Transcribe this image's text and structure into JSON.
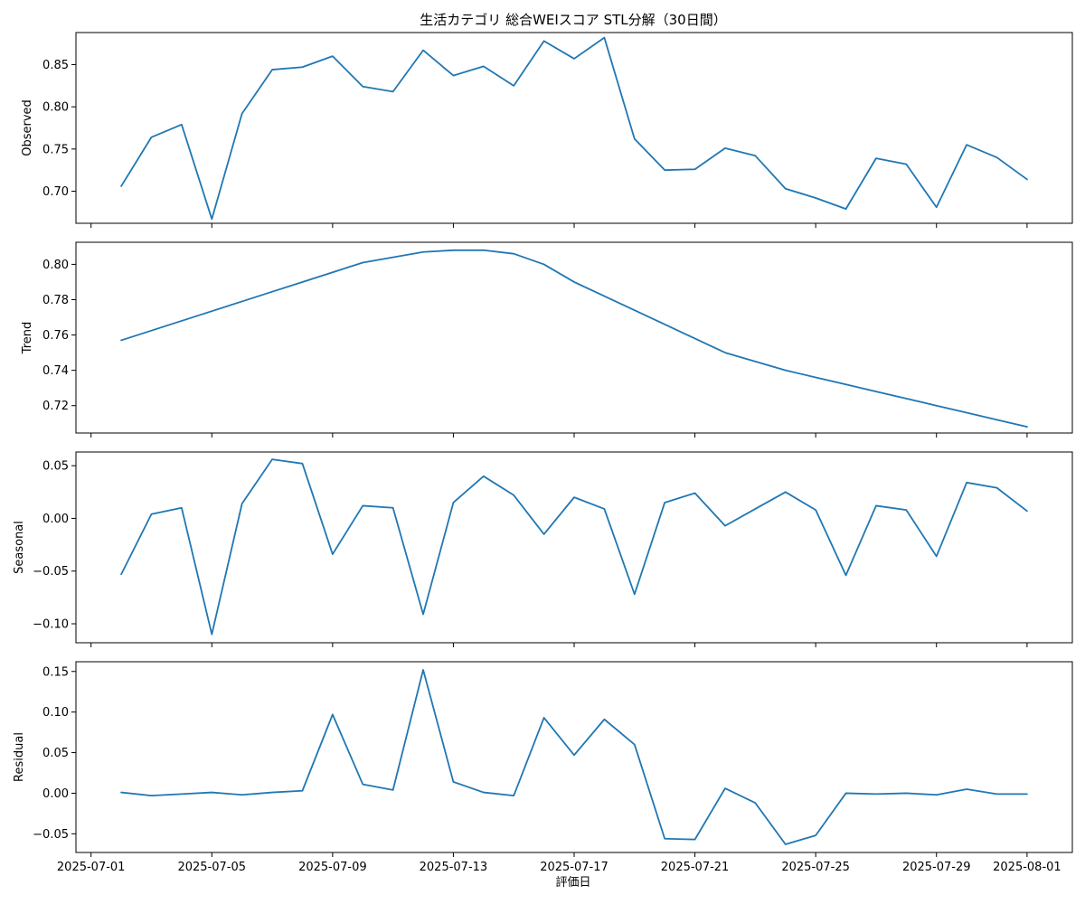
{
  "chart_data": {
    "type": "line",
    "title": "生活カテゴリ 総合WEIスコア STL分解（30日間）",
    "xlabel": "評価日",
    "x_start": "2025-07-02",
    "x_end": "2025-08-01",
    "xlim": [
      "2025-07-00T12",
      "2025-08-02T12"
    ],
    "x_ticks": [
      "2025-07-01",
      "2025-07-05",
      "2025-07-09",
      "2025-07-13",
      "2025-07-17",
      "2025-07-21",
      "2025-07-25",
      "2025-07-29",
      "2025-08-01"
    ],
    "line_color": "#1f77b4",
    "grid": false,
    "panels": [
      {
        "ylabel": "Observed",
        "ylim": [
          0.662,
          0.888
        ],
        "yticks": [
          "0.70",
          "0.75",
          "0.80",
          "0.85"
        ],
        "values": [
          0.706,
          0.764,
          0.779,
          0.667,
          0.792,
          0.844,
          0.847,
          0.86,
          0.824,
          0.818,
          0.867,
          0.837,
          0.848,
          0.825,
          0.878,
          0.857,
          0.882,
          0.762,
          0.725,
          0.726,
          0.751,
          0.742,
          0.703,
          0.692,
          0.679,
          0.739,
          0.732,
          0.681,
          0.755,
          0.74,
          0.714
        ]
      },
      {
        "ylabel": "Trend",
        "ylim": [
          0.7045,
          0.8125
        ],
        "yticks": [
          "0.72",
          "0.74",
          "0.76",
          "0.78",
          "0.80"
        ],
        "values": [
          0.757,
          0.7625,
          0.768,
          0.7735,
          0.779,
          0.7845,
          0.79,
          0.7955,
          0.801,
          0.804,
          0.807,
          0.808,
          0.808,
          0.806,
          0.8,
          0.79,
          0.782,
          0.774,
          0.766,
          0.758,
          0.75,
          0.745,
          0.74,
          0.736,
          0.732,
          0.728,
          0.724,
          0.72,
          0.716,
          0.712,
          0.708
        ]
      },
      {
        "ylabel": "Seasonal",
        "ylim": [
          -0.118,
          0.063
        ],
        "yticks": [
          "−0.10",
          "−0.05",
          "0.00",
          "0.05"
        ],
        "values": [
          -0.053,
          0.004,
          0.01,
          -0.11,
          0.014,
          0.056,
          0.052,
          -0.034,
          0.012,
          0.01,
          -0.091,
          0.015,
          0.04,
          0.022,
          -0.015,
          0.02,
          0.009,
          -0.072,
          0.015,
          0.024,
          -0.007,
          0.009,
          0.025,
          0.008,
          -0.054,
          0.012,
          0.008,
          -0.036,
          0.034,
          0.029,
          0.007
        ]
      },
      {
        "ylabel": "Residual",
        "ylim": [
          -0.073,
          0.162
        ],
        "yticks": [
          "−0.05",
          "0.00",
          "0.05",
          "0.10",
          "0.15"
        ],
        "values": [
          0.001,
          -0.003,
          -0.001,
          0.001,
          -0.002,
          0.001,
          0.003,
          0.097,
          0.011,
          0.004,
          0.152,
          0.014,
          0.001,
          -0.003,
          0.093,
          0.047,
          0.091,
          0.06,
          -0.056,
          -0.057,
          0.006,
          -0.012,
          -0.063,
          -0.052,
          0.0,
          -0.001,
          0.0,
          -0.002,
          0.005,
          -0.001,
          -0.001
        ]
      }
    ]
  }
}
